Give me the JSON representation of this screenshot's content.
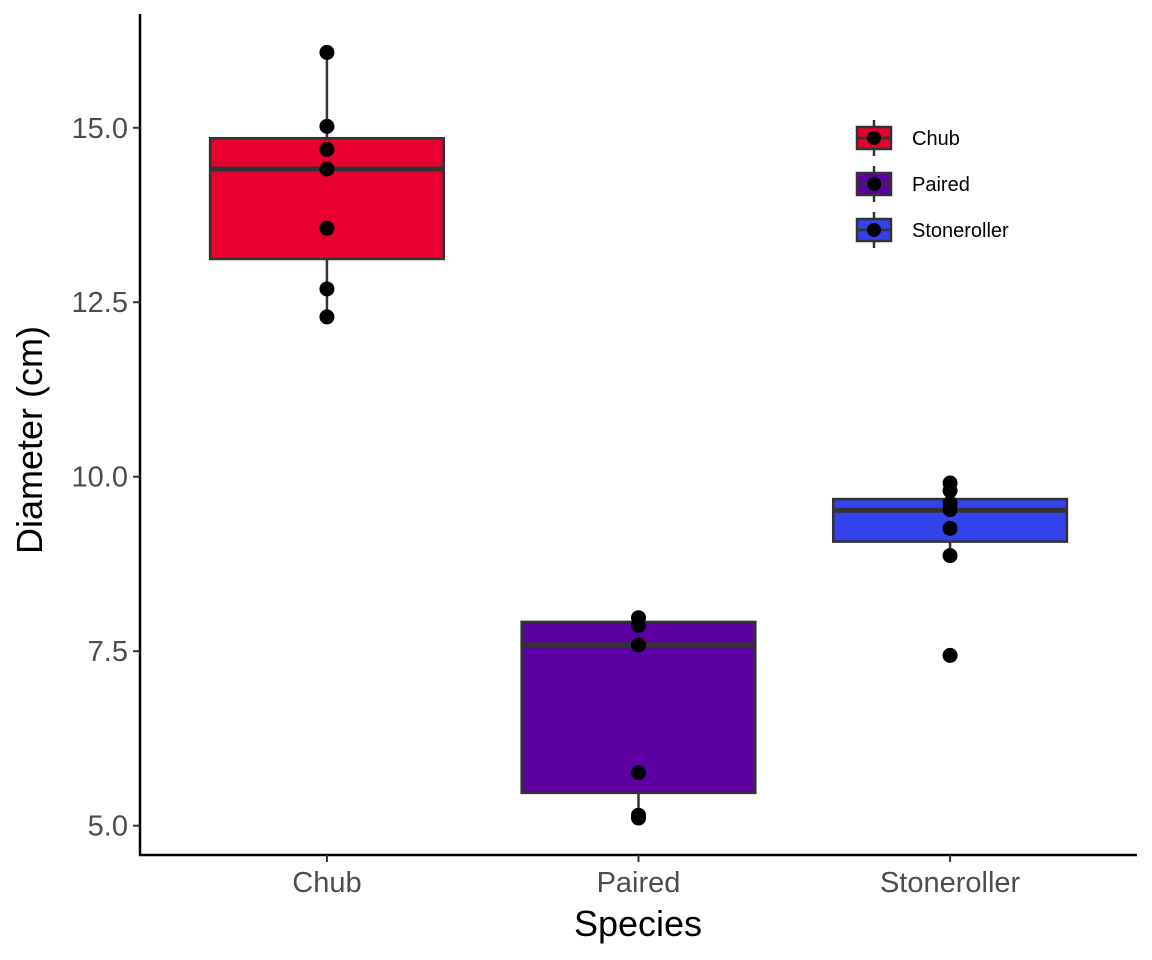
{
  "chart_data": {
    "type": "box",
    "title": "",
    "xlabel": "Species",
    "ylabel": "Diameter (cm)",
    "ylim": [
      4.58,
      16.63
    ],
    "yticks": [
      5.0,
      7.5,
      10.0,
      12.5,
      15.0
    ],
    "ytick_labels": [
      "5.0",
      "7.5",
      "10.0",
      "12.5",
      "15.0"
    ],
    "categories": [
      "Chub",
      "Paired",
      "Stoneroller"
    ],
    "grid": false,
    "legend": {
      "position": "top-right",
      "entries": [
        "Chub",
        "Paired",
        "Stoneroller"
      ]
    },
    "series": [
      {
        "name": "Chub",
        "color": "#E8002F",
        "box": {
          "q1": 13.12,
          "median": 14.41,
          "q3": 14.85,
          "whisker_low": 12.29,
          "whisker_high": 16.08
        },
        "points": [
          16.08,
          15.02,
          14.69,
          14.41,
          13.56,
          12.69,
          12.29
        ]
      },
      {
        "name": "Paired",
        "color": "#5C00A3",
        "box": {
          "q1": 5.47,
          "median": 7.59,
          "q3": 7.92,
          "whisker_low": 5.11,
          "whisker_high": 7.98
        },
        "points": [
          7.98,
          7.87,
          7.59,
          5.76,
          5.15,
          5.11
        ]
      },
      {
        "name": "Stoneroller",
        "color": "#3342EA",
        "box": {
          "q1": 9.07,
          "median": 9.52,
          "q3": 9.68,
          "whisker_low": 8.87,
          "whisker_high": 9.91
        },
        "points": [
          9.91,
          9.8,
          9.62,
          9.53,
          9.26,
          8.87,
          7.44
        ],
        "outliers": [
          7.44
        ]
      }
    ]
  }
}
